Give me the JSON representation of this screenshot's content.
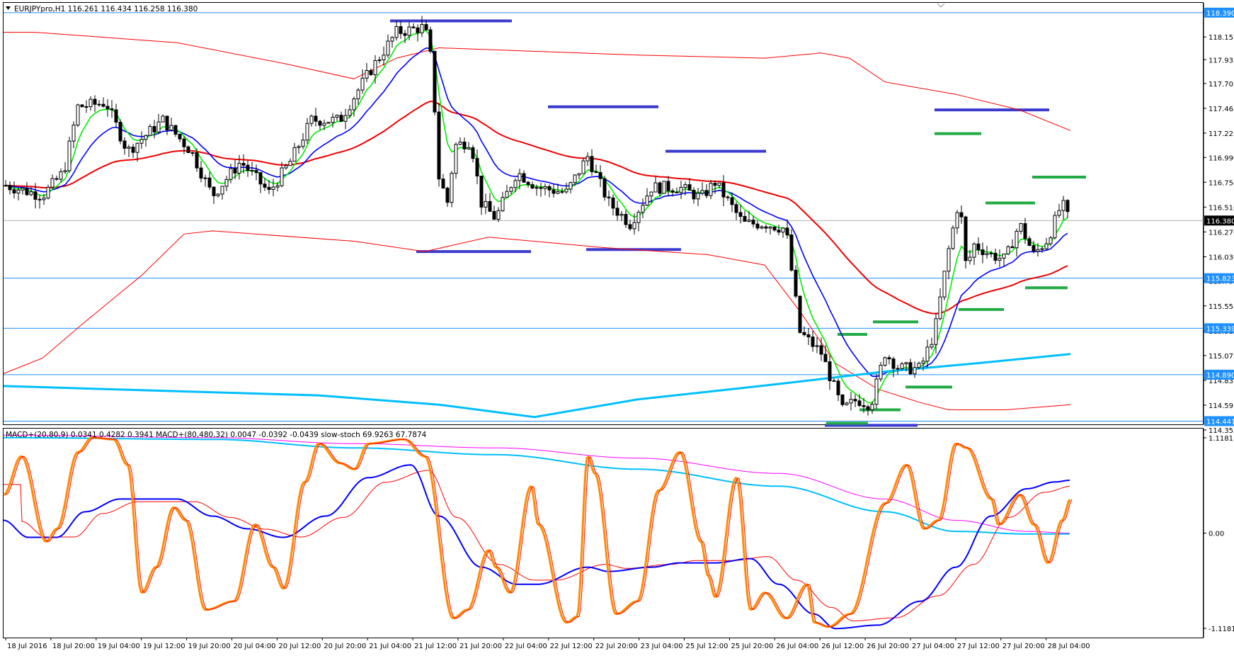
{
  "header": {
    "symbol_info": "EURJPYpro,H1  116.261 116.434 116.258 116.380"
  },
  "indicator_header": {
    "text": "MACD+(20,80,9) 0.0341 0.4282 0.3941   MACD+(80,480,32) 0.0047 -0.0392 -0.0439   slow-stoch 69.9263 67.7874"
  },
  "colors": {
    "background": "#ffffff",
    "bull_candle": "#ffffff",
    "bear_candle": "#000000",
    "fast_ma": "#00ee00",
    "mid_ma": "#0000ff",
    "slow_ma": "#ee0000",
    "envelope": "#ff0000",
    "long_ma": "#00bfff",
    "hline": "#1e90ff",
    "resistance_marker": "#3a3acf",
    "support_marker": "#22aa44",
    "stoch_main": "#ff8c00",
    "stoch_signal": "#ff0000",
    "macd_long": "#00bfff",
    "macd_long_signal": "#ff00ff",
    "current_price_tag": "#000000",
    "level_tag": "#1e90ff"
  },
  "price_axis": {
    "ticks": [
      "118.395",
      "118.155",
      "117.935",
      "117.705",
      "117.465",
      "117.225",
      "116.990",
      "116.750",
      "116.510",
      "116.270",
      "116.030",
      "115.795",
      "115.555",
      "115.315",
      "115.075",
      "114.835",
      "114.595",
      "114.355"
    ],
    "range": [
      114.355,
      118.43
    ]
  },
  "price_levels": [
    {
      "label": "118.390",
      "value": 118.39
    },
    {
      "label": "115.823",
      "value": 115.823
    },
    {
      "label": "115.339",
      "value": 115.339
    },
    {
      "label": "114.890",
      "value": 114.89
    },
    {
      "label": "114.441",
      "value": 114.441
    }
  ],
  "current_price": {
    "label": "116.380",
    "value": 116.38
  },
  "indicator_axis": {
    "ticks": [
      "1.1181",
      "0.00",
      "-1.1181"
    ],
    "range": [
      -1.1181,
      1.1181
    ]
  },
  "time_axis": {
    "labels": [
      "18 Jul 2016",
      "18 Jul 20:00",
      "19 Jul 04:00",
      "19 Jul 12:00",
      "19 Jul 20:00",
      "20 Jul 04:00",
      "20 Jul 12:00",
      "20 Jul 20:00",
      "21 Jul 04:00",
      "21 Jul 12:00",
      "21 Jul 20:00",
      "22 Jul 04:00",
      "22 Jul 12:00",
      "22 Jul 20:00",
      "23 Jul 04:00",
      "25 Jul 12:00",
      "25 Jul 20:00",
      "26 Jul 04:00",
      "26 Jul 12:00",
      "26 Jul 20:00",
      "27 Jul 04:00",
      "27 Jul 12:00",
      "27 Jul 20:00",
      "28 Jul 04:00"
    ]
  }
}
